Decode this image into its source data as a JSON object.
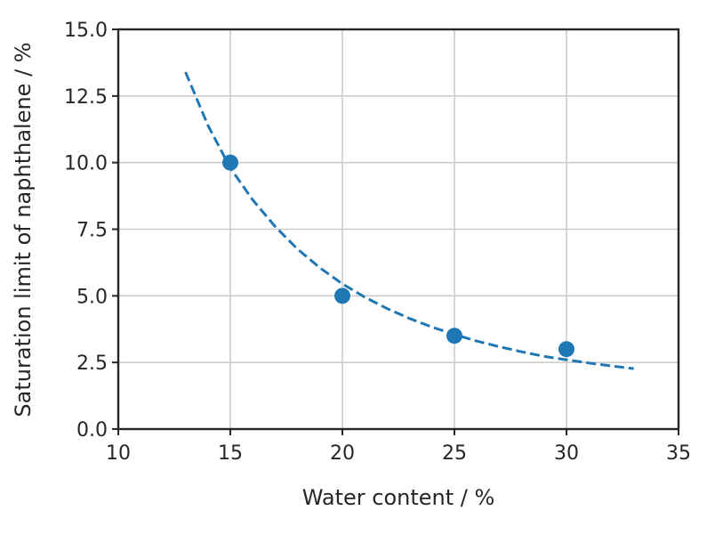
{
  "chart_data": {
    "type": "scatter",
    "xlabel": "Water content / %",
    "ylabel": "Saturation limit of naphthalene / %",
    "xlim": [
      10,
      35
    ],
    "ylim": [
      0,
      15
    ],
    "xticks": [
      "10",
      "15",
      "20",
      "25",
      "30",
      "35"
    ],
    "yticks": [
      "0.0",
      "2.5",
      "5.0",
      "7.5",
      "10.0",
      "12.5",
      "15.0"
    ],
    "grid": true,
    "series": [
      {
        "type": "scatter",
        "x": [
          15,
          20,
          25,
          30
        ],
        "y": [
          10.0,
          5.0,
          3.5,
          3.0
        ],
        "color": "#1f77b4"
      },
      {
        "type": "line",
        "style": "dashed",
        "color": "#1f77b4",
        "x": [
          13,
          14,
          15,
          16,
          17,
          18,
          19,
          20,
          21,
          22,
          23,
          24,
          25,
          26,
          27,
          28,
          29,
          30,
          31,
          32,
          33
        ],
        "y": [
          13.4,
          11.4,
          9.8,
          8.6,
          7.6,
          6.75,
          6.05,
          5.45,
          4.95,
          4.52,
          4.15,
          3.83,
          3.55,
          3.3,
          3.09,
          2.9,
          2.73,
          2.6,
          2.48,
          2.37,
          2.27
        ]
      }
    ]
  }
}
